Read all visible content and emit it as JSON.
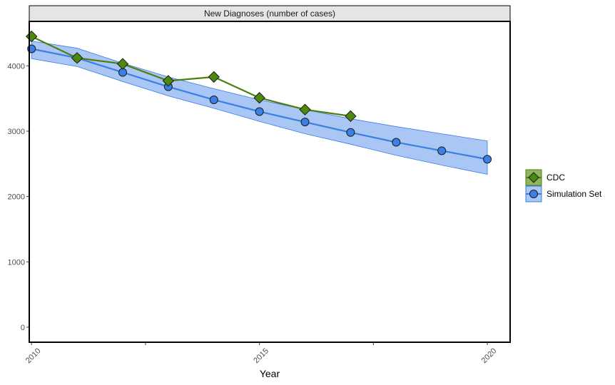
{
  "chart_data": {
    "type": "line",
    "title": "New Diagnoses (number of cases)",
    "xlabel": "Year",
    "ylabel": "",
    "xlim": [
      2009.95,
      2020.5
    ],
    "ylim": [
      -230,
      4680
    ],
    "x_ticks": [
      2010,
      2015,
      2020
    ],
    "x_minor_ticks": [
      2012.5,
      2017.5
    ],
    "y_ticks": [
      0,
      1000,
      2000,
      3000,
      4000
    ],
    "grid": false,
    "legend_position": "right",
    "series": [
      {
        "name": "CDC",
        "marker": "diamond",
        "color": "#4d7f0f",
        "x": [
          2010,
          2011,
          2012,
          2013,
          2014,
          2015,
          2016,
          2017
        ],
        "y": [
          4450,
          4120,
          4030,
          3770,
          3830,
          3510,
          3330,
          3230
        ]
      },
      {
        "name": "Simulation Set",
        "marker": "circle",
        "color": "#3b7fe0",
        "x": [
          2010,
          2011,
          2012,
          2013,
          2014,
          2015,
          2016,
          2017,
          2018,
          2019,
          2020
        ],
        "y": [
          4260,
          4120,
          3900,
          3680,
          3480,
          3300,
          3140,
          2980,
          2830,
          2700,
          2570
        ],
        "band": {
          "x": [
            2010,
            2011,
            2012,
            2013,
            2014,
            2015,
            2016,
            2017,
            2018,
            2019,
            2020
          ],
          "upper": [
            4380,
            4270,
            4040,
            3830,
            3650,
            3480,
            3330,
            3190,
            3070,
            2960,
            2850
          ],
          "lower": [
            4110,
            3990,
            3760,
            3540,
            3350,
            3150,
            2960,
            2800,
            2630,
            2480,
            2340
          ]
        }
      }
    ]
  },
  "colors": {
    "cdc_line": "#4d7f0f",
    "cdc_fill": "#4d8a0c",
    "cdc_legend_bg": "#8fb560",
    "sim_line": "#3b7fe0",
    "sim_fill": "#3d7fe6",
    "sim_band": "#a9c6f5",
    "strip_bg": "#e5e5e5"
  }
}
